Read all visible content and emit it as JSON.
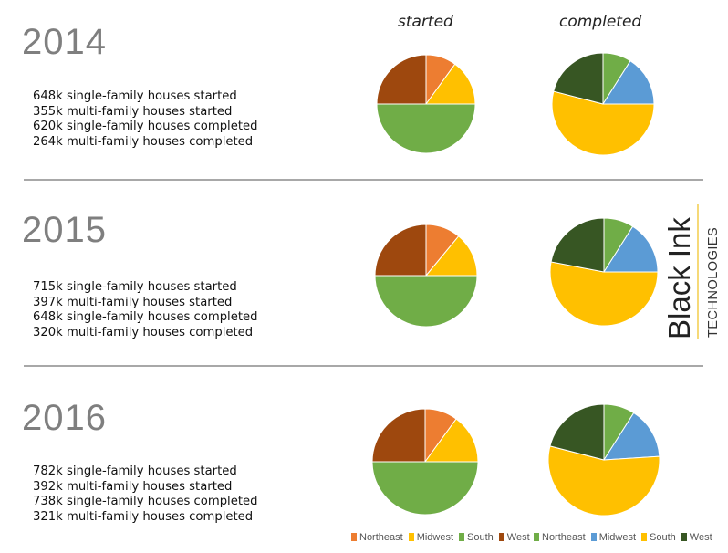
{
  "headers": {
    "started": "started",
    "completed": "completed"
  },
  "sections": [
    {
      "year": "2014",
      "stats": [
        "648k single-family houses started",
        "355k multi-family houses started",
        "620k single-family houses completed",
        "264k multi-family houses completed"
      ]
    },
    {
      "year": "2015",
      "stats": [
        "715k single-family houses started",
        "397k multi-family houses started",
        "648k single-family houses completed",
        "320k multi-family houses completed"
      ]
    },
    {
      "year": "2016",
      "stats": [
        "782k single-family houses started",
        "392k multi-family houses started",
        "738k single-family houses completed",
        "321k multi-family houses completed"
      ]
    }
  ],
  "brand": {
    "line1": "Black Ink",
    "line2": "TECHNOLOGIES"
  },
  "legend_started": {
    "labels": [
      "Northeast",
      "Midwest",
      "South",
      "West"
    ],
    "colors": [
      "#ed7d31",
      "#ffc000",
      "#70ad47",
      "#9e480e"
    ]
  },
  "legend_completed": {
    "labels": [
      "Northeast",
      "Midwest",
      "South",
      "West"
    ],
    "colors": [
      "#70ad47",
      "#5b9bd5",
      "#ffc000",
      "#375623"
    ]
  },
  "chart_data": [
    {
      "type": "pie",
      "year": "2014",
      "panel": "started",
      "categories": [
        "Northeast",
        "Midwest",
        "South",
        "West"
      ],
      "values": [
        10,
        15,
        50,
        25
      ],
      "colors": [
        "#ed7d31",
        "#ffc000",
        "#70ad47",
        "#9e480e"
      ]
    },
    {
      "type": "pie",
      "year": "2014",
      "panel": "completed",
      "categories": [
        "Northeast",
        "Midwest",
        "South",
        "West"
      ],
      "values": [
        9,
        16,
        54,
        21
      ],
      "colors": [
        "#70ad47",
        "#5b9bd5",
        "#ffc000",
        "#375623"
      ]
    },
    {
      "type": "pie",
      "year": "2015",
      "panel": "started",
      "categories": [
        "Northeast",
        "Midwest",
        "South",
        "West"
      ],
      "values": [
        11,
        14,
        50,
        25
      ],
      "colors": [
        "#ed7d31",
        "#ffc000",
        "#70ad47",
        "#9e480e"
      ]
    },
    {
      "type": "pie",
      "year": "2015",
      "panel": "completed",
      "categories": [
        "Northeast",
        "Midwest",
        "South",
        "West"
      ],
      "values": [
        9,
        16,
        53,
        22
      ],
      "colors": [
        "#70ad47",
        "#5b9bd5",
        "#ffc000",
        "#375623"
      ]
    },
    {
      "type": "pie",
      "year": "2016",
      "panel": "started",
      "categories": [
        "Northeast",
        "Midwest",
        "South",
        "West"
      ],
      "values": [
        10,
        15,
        50,
        25
      ],
      "colors": [
        "#ed7d31",
        "#ffc000",
        "#70ad47",
        "#9e480e"
      ]
    },
    {
      "type": "pie",
      "year": "2016",
      "panel": "completed",
      "categories": [
        "Northeast",
        "Midwest",
        "South",
        "West"
      ],
      "values": [
        9,
        15,
        55,
        21
      ],
      "colors": [
        "#70ad47",
        "#5b9bd5",
        "#ffc000",
        "#375623"
      ]
    }
  ]
}
